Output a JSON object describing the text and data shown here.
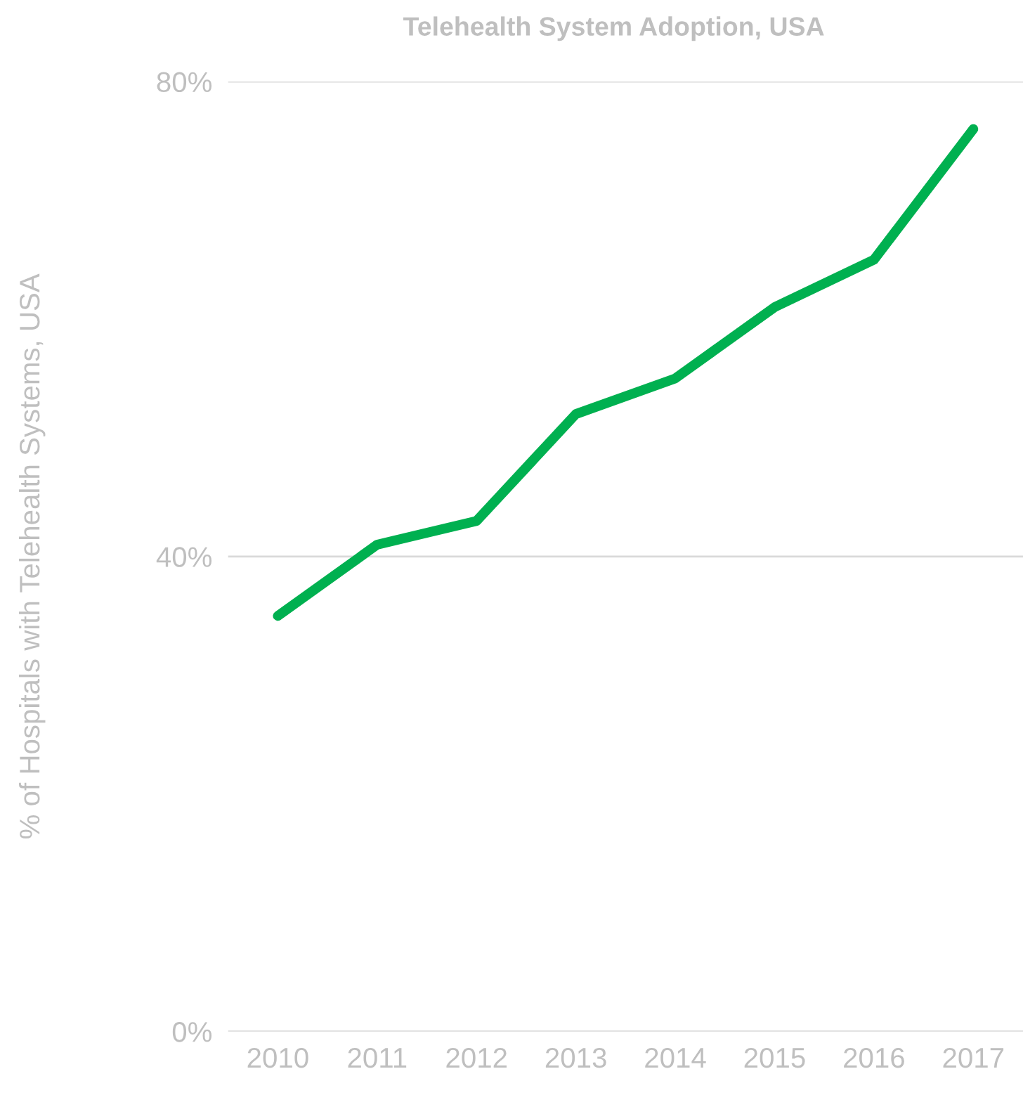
{
  "chart_data": {
    "type": "line",
    "title": "Telehealth System Adoption, USA",
    "ylabel": "% of Hospitals with Telehealth Systems, USA",
    "categories": [
      "2010",
      "2011",
      "2012",
      "2013",
      "2014",
      "2015",
      "2016",
      "2017"
    ],
    "series": [
      {
        "color": "#00b050",
        "values": [
          35,
          41,
          43,
          52,
          55,
          61,
          65,
          76
        ]
      }
    ],
    "ylim": [
      0,
      80
    ],
    "yticks": [
      {
        "value": 0,
        "label": "0%"
      },
      {
        "value": 40,
        "label": "40%"
      },
      {
        "value": 80,
        "label": "80%"
      }
    ],
    "grid": "y",
    "marker": "none",
    "line_style": "solid"
  }
}
